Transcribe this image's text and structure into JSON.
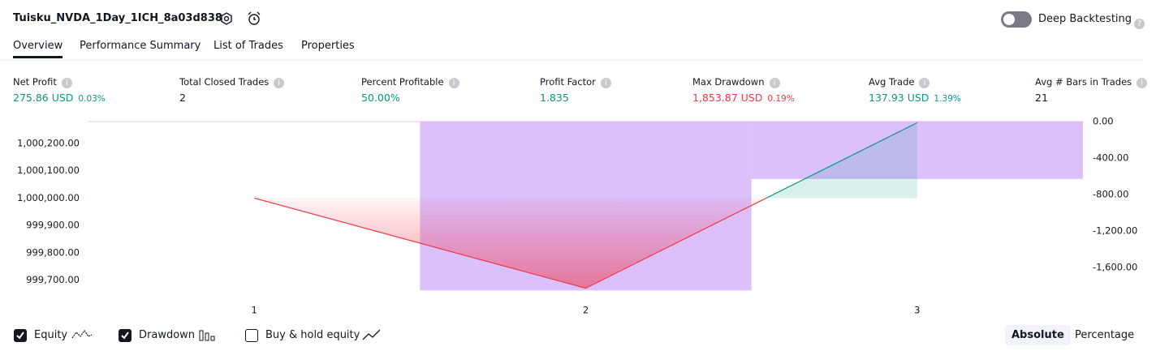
{
  "header": {
    "strategy_name": "Tuisku_NVDA_1Day_1ICH_8a03d838",
    "tabs": [
      "Overview",
      "Performance Summary",
      "List of Trades",
      "Properties"
    ],
    "toggle_label": "Deep Backtesting"
  },
  "metrics": [
    {
      "label": "Net Profit",
      "value": "275.86 USD",
      "percent": "0.03%",
      "color": "#089981"
    },
    {
      "label": "Total Closed Trades",
      "value": "2",
      "color": "#131722"
    },
    {
      "label": "Percent Profitable",
      "value": "50.00%",
      "color": "#089981"
    },
    {
      "label": "Profit Factor",
      "value": "1.835",
      "color": "#089981"
    },
    {
      "label": "Max Drawdown",
      "value": "1,853.87 USD",
      "percent": "0.19%",
      "color": "#f23645"
    },
    {
      "label": "Avg Trade",
      "value": "137.93 USD",
      "percent": "1.39%",
      "color": "#089981"
    },
    {
      "label": "Avg # Bars in Trades",
      "value": "21",
      "color": "#131722"
    }
  ],
  "chart_data": {
    "type": "line",
    "categories": [
      "1",
      "2",
      "3"
    ],
    "series": [
      {
        "name": "Equity",
        "color": "#f23645",
        "color_above": "#089981",
        "values": [
          1000000,
          999670,
          1000275.86
        ]
      },
      {
        "name": "Drawdown",
        "type": "bar",
        "axis": "y2",
        "color": "rgba(190,140,250,0.55)",
        "values": [
          0,
          -1853.87,
          -630
        ]
      }
    ],
    "ylim": [
      999660,
      1000280
    ],
    "yticks": [
      {
        "value": 999700,
        "label": "999,700.00"
      },
      {
        "value": 999800,
        "label": "999,800.00"
      },
      {
        "value": 999900,
        "label": "999,900.00"
      },
      {
        "value": 1000000,
        "label": "1,000,000.00"
      },
      {
        "value": 1000100,
        "label": "1,000,100.00"
      },
      {
        "value": 1000200,
        "label": "1,000,200.00"
      }
    ],
    "y2lim": [
      -1860,
      0
    ],
    "y2ticks": [
      {
        "value": 0,
        "label": "0.00"
      },
      {
        "value": -400,
        "label": "-400.00"
      },
      {
        "value": -800,
        "label": "-800.00"
      },
      {
        "value": -1200,
        "label": "-1,200.00"
      },
      {
        "value": -1600,
        "label": "-1,600.00"
      }
    ],
    "baseline": 1000000
  },
  "footer": {
    "buy_hold_label": "Buy & hold equity",
    "modes": [
      "Absolute",
      "Percentage"
    ]
  }
}
